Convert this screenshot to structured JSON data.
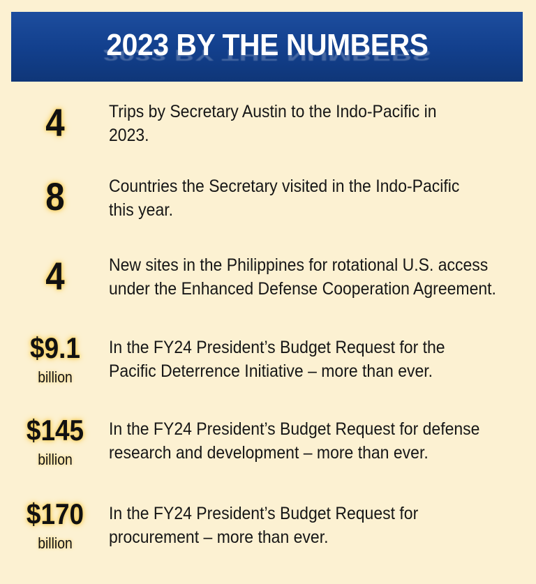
{
  "header": {
    "title": "2023 BY THE NUMBERS"
  },
  "stats": [
    {
      "value": "4",
      "unit": "",
      "lines": [
        "Trips by Secretary Austin to the Indo-Pacific in",
        "2023."
      ]
    },
    {
      "value": "8",
      "unit": "",
      "lines": [
        "Countries the Secretary visited in the Indo-Pacific",
        "this year."
      ]
    },
    {
      "value": "4",
      "unit": "",
      "lines": [
        "New sites in the Philippines for rotational U.S. access",
        "under the Enhanced Defense Cooperation Agreement."
      ]
    },
    {
      "value": "$9.1",
      "unit": "billion",
      "lines": [
        "In the FY24 President’s Budget Request for the",
        "Pacific Deterrence Initiative – more than ever."
      ]
    },
    {
      "value": "$145",
      "unit": "billion",
      "lines": [
        "In the FY24 President’s Budget Request for defense",
        "research and development – more than ever."
      ]
    },
    {
      "value": "$170",
      "unit": "billion",
      "lines": [
        "In the FY24 President’s Budget Request for",
        "procurement – more than ever."
      ]
    }
  ],
  "colors": {
    "background": "#fcf1d2",
    "banner": "#123f8c",
    "glow": "#f5c84a"
  }
}
